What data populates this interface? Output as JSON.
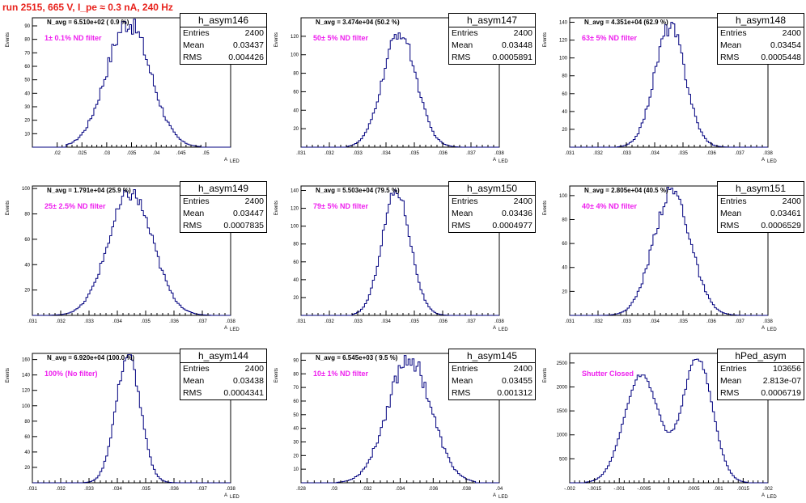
{
  "run_title": "run 2515,   665 V, I_pe ≈ 0.3 nA, 240 Hz",
  "y_axis_title": "Events",
  "x_axis_title": "A",
  "x_axis_subscript": "LED",
  "colors": {
    "histogram": "#00007f",
    "title": "#e8221c",
    "filter_label": "#ee1fee"
  },
  "chart_data": [
    {
      "type": "histogram",
      "name": "h_asym146",
      "stats": {
        "entries": "2400",
        "mean": "0.03437",
        "rms": "0.004426"
      },
      "n_avg": "N_avg = 6.510e+02 ( 0.9 %)",
      "filter": "1± 0.1% ND filter",
      "xlim": [
        0.015,
        0.055
      ],
      "ylim": [
        0,
        96
      ],
      "x_ticks": [
        0.02,
        0.025,
        0.03,
        0.035,
        0.04,
        0.045,
        0.05
      ],
      "y_ticks": [
        10,
        20,
        30,
        40,
        50,
        60,
        70,
        80,
        90
      ],
      "mean": 0.03437,
      "sigma": 0.004426,
      "peak": 93,
      "start": 0.022,
      "end": 0.049,
      "nbins": 100,
      "jitter": 0.09
    },
    {
      "type": "histogram",
      "name": "h_asym147",
      "stats": {
        "entries": "2400",
        "mean": "0.03448",
        "rms": "0.0005891"
      },
      "n_avg": "N_avg = 3.474e+04 (50.2 %)",
      "filter": "50± 5% ND filter",
      "xlim": [
        0.031,
        0.038
      ],
      "ylim": [
        0,
        140
      ],
      "x_ticks": [
        0.031,
        0.032,
        0.033,
        0.034,
        0.035,
        0.036,
        0.037,
        0.038
      ],
      "y_ticks": [
        20,
        40,
        60,
        80,
        100,
        120
      ],
      "mean": 0.03448,
      "sigma": 0.0005891,
      "peak": 124,
      "start": 0.0326,
      "end": 0.0367,
      "nbins": 100,
      "jitter": 0.06
    },
    {
      "type": "histogram",
      "name": "h_asym148",
      "stats": {
        "entries": "2400",
        "mean": "0.03454",
        "rms": "0.0005448"
      },
      "n_avg": "N_avg = 4.351e+04 (62.9 %)",
      "filter": "63± 5% ND filter",
      "xlim": [
        0.031,
        0.038
      ],
      "ylim": [
        0,
        145
      ],
      "x_ticks": [
        0.031,
        0.032,
        0.033,
        0.034,
        0.035,
        0.036,
        0.037,
        0.038
      ],
      "y_ticks": [
        20,
        40,
        60,
        80,
        100,
        120,
        140
      ],
      "mean": 0.03454,
      "sigma": 0.0005448,
      "peak": 135,
      "start": 0.0327,
      "end": 0.0366,
      "nbins": 100,
      "jitter": 0.07
    },
    {
      "type": "histogram",
      "name": "h_asym149",
      "stats": {
        "entries": "2400",
        "mean": "0.03447",
        "rms": "0.0007835"
      },
      "n_avg": "N_avg = 1.791e+04 (25.9 %)",
      "filter": "25± 2.5% ND filter",
      "xlim": [
        0.031,
        0.038
      ],
      "ylim": [
        0,
        102
      ],
      "x_ticks": [
        0.031,
        0.032,
        0.033,
        0.034,
        0.035,
        0.036,
        0.037,
        0.038
      ],
      "y_ticks": [
        20,
        40,
        60,
        80,
        100
      ],
      "mean": 0.03447,
      "sigma": 0.0007835,
      "peak": 96,
      "start": 0.0316,
      "end": 0.0373,
      "nbins": 100,
      "jitter": 0.07
    },
    {
      "type": "histogram",
      "name": "h_asym150",
      "stats": {
        "entries": "2400",
        "mean": "0.03436",
        "rms": "0.0004977"
      },
      "n_avg": "N_avg = 5.503e+04 (79.5 %)",
      "filter": "79± 5% ND filter",
      "xlim": [
        0.031,
        0.038
      ],
      "ylim": [
        0,
        145
      ],
      "x_ticks": [
        0.031,
        0.032,
        0.033,
        0.034,
        0.035,
        0.036,
        0.037,
        0.038
      ],
      "y_ticks": [
        20,
        40,
        60,
        80,
        100,
        120,
        140
      ],
      "mean": 0.03436,
      "sigma": 0.0004977,
      "peak": 140,
      "start": 0.0328,
      "end": 0.0362,
      "nbins": 100,
      "jitter": 0.05
    },
    {
      "type": "histogram",
      "name": "h_asym151",
      "stats": {
        "entries": "2400",
        "mean": "0.03461",
        "rms": "0.0006529"
      },
      "n_avg": "N_avg = 2.805e+04 (40.5 %)",
      "filter": "40± 4% ND filter",
      "xlim": [
        0.031,
        0.038
      ],
      "ylim": [
        0,
        108
      ],
      "x_ticks": [
        0.031,
        0.032,
        0.033,
        0.034,
        0.035,
        0.036,
        0.037,
        0.038
      ],
      "y_ticks": [
        20,
        40,
        60,
        80,
        100
      ],
      "mean": 0.03461,
      "sigma": 0.0006529,
      "peak": 104,
      "start": 0.0322,
      "end": 0.0372,
      "nbins": 100,
      "jitter": 0.07
    },
    {
      "type": "histogram",
      "name": "h_asym144",
      "stats": {
        "entries": "2400",
        "mean": "0.03438",
        "rms": "0.0004341"
      },
      "n_avg": "N_avg = 6.920e+04 (100.0 %)",
      "filter": "100% (No filter)",
      "xlim": [
        0.031,
        0.038
      ],
      "ylim": [
        0,
        168
      ],
      "x_ticks": [
        0.031,
        0.032,
        0.033,
        0.034,
        0.035,
        0.036,
        0.037,
        0.038
      ],
      "y_ticks": [
        20,
        40,
        60,
        80,
        100,
        120,
        140,
        160
      ],
      "mean": 0.03438,
      "sigma": 0.0004341,
      "peak": 165,
      "start": 0.0328,
      "end": 0.0362,
      "nbins": 100,
      "jitter": 0.05
    },
    {
      "type": "histogram",
      "name": "h_asym145",
      "stats": {
        "entries": "2400",
        "mean": "0.03455",
        "rms": "0.001312"
      },
      "n_avg": "N_avg = 6.545e+03 ( 9.5 %)",
      "filter": "10± 1% ND filter",
      "xlim": [
        0.028,
        0.04
      ],
      "ylim": [
        0,
        95
      ],
      "x_ticks": [
        0.028,
        0.03,
        0.032,
        0.034,
        0.036,
        0.038,
        0.04
      ],
      "y_ticks": [
        10,
        20,
        30,
        40,
        50,
        60,
        70,
        80,
        90
      ],
      "mean": 0.03455,
      "sigma": 0.001312,
      "peak": 92,
      "start": 0.0302,
      "end": 0.0385,
      "nbins": 100,
      "jitter": 0.08
    },
    {
      "type": "histogram",
      "name": "hPed_asym",
      "stats": {
        "entries": "103656",
        "mean": "2.813e-07",
        "rms": "0.0006719"
      },
      "n_avg": "",
      "filter": "Shutter Closed",
      "xlim": [
        -0.002,
        0.002
      ],
      "ylim": [
        0,
        2700
      ],
      "x_ticks": [
        -0.002,
        -0.0015,
        -0.001,
        -0.0005,
        0,
        0.0005,
        0.001,
        0.0015,
        0.002
      ],
      "y_ticks": [
        500,
        1000,
        1500,
        2000,
        2500
      ],
      "bimodal": true,
      "peaks": [
        {
          "x": -0.00055,
          "h": 2250,
          "w": 0.00035
        },
        {
          "x": 0.00058,
          "h": 2600,
          "w": 0.0003
        }
      ],
      "mean": 2.813e-07,
      "sigma": 0.0006719,
      "peak": 2600,
      "start": -0.0017,
      "end": 0.0016,
      "nbins": 100,
      "jitter": 0.02
    }
  ]
}
